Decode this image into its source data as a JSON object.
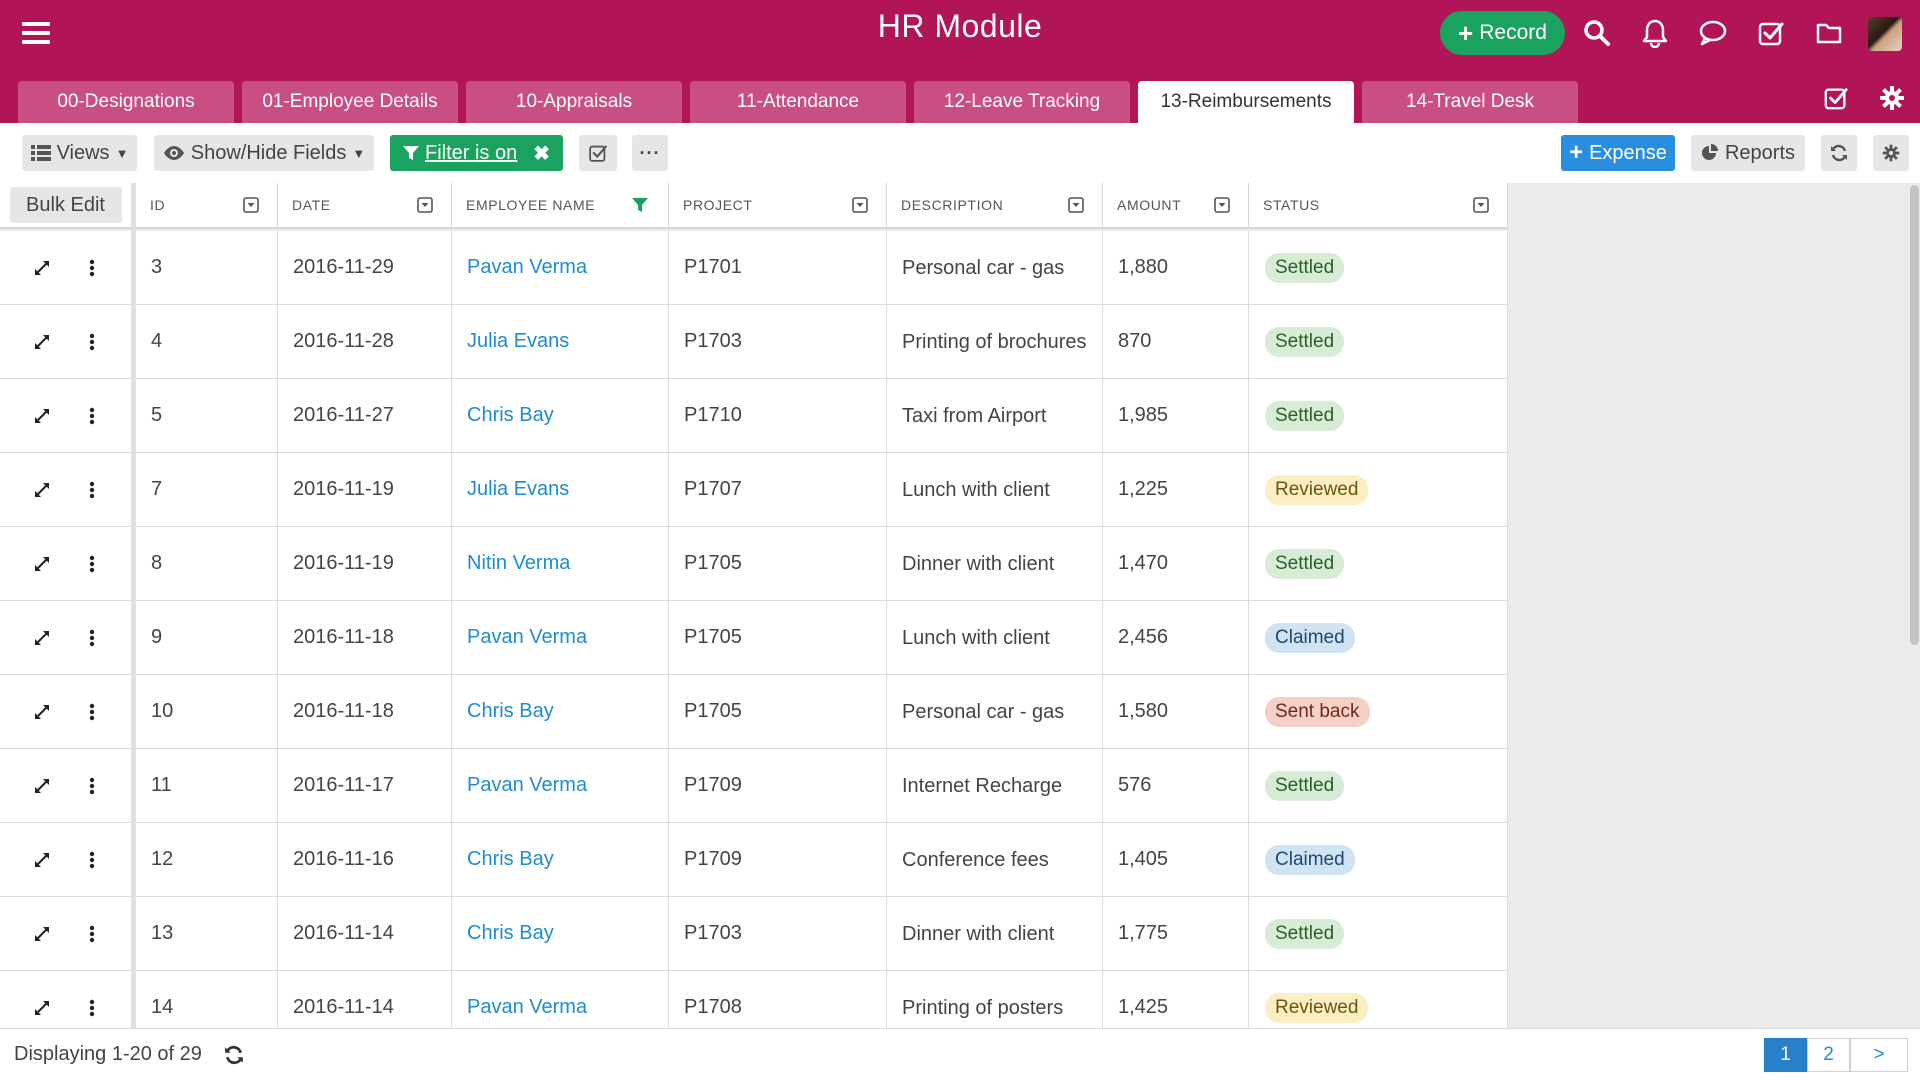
{
  "app": {
    "title": "HR Module"
  },
  "header": {
    "record_label": "Record",
    "icons": [
      "search-icon",
      "bell-icon",
      "chat-icon",
      "checkbox-icon",
      "folder-icon"
    ]
  },
  "tabs": [
    {
      "label": "00-Designations",
      "active": false
    },
    {
      "label": "01-Employee Details",
      "active": false
    },
    {
      "label": "10-Appraisals",
      "active": false
    },
    {
      "label": "11-Attendance",
      "active": false
    },
    {
      "label": "12-Leave Tracking",
      "active": false
    },
    {
      "label": "13-Reimbursements",
      "active": true
    },
    {
      "label": "14-Travel Desk",
      "active": false
    }
  ],
  "toolbar": {
    "views_label": "Views",
    "showhide_label": "Show/Hide Fields",
    "filter_label": "Filter is on",
    "expense_label": "Expense",
    "reports_label": "Reports"
  },
  "grid": {
    "bulk_edit_label": "Bulk Edit",
    "columns": [
      "ID",
      "DATE",
      "EMPLOYEE NAME",
      "PROJECT",
      "DESCRIPTION",
      "AMOUNT",
      "STATUS"
    ],
    "rows": [
      {
        "id": "3",
        "date": "2016-11-29",
        "employee": "Pavan Verma",
        "project": "P1701",
        "description": "Personal car - gas",
        "amount": "1,880",
        "status": "Settled"
      },
      {
        "id": "4",
        "date": "2016-11-28",
        "employee": "Julia Evans",
        "project": "P1703",
        "description": "Printing of brochures",
        "amount": "870",
        "status": "Settled"
      },
      {
        "id": "5",
        "date": "2016-11-27",
        "employee": "Chris Bay",
        "project": "P1710",
        "description": "Taxi from Airport",
        "amount": "1,985",
        "status": "Settled"
      },
      {
        "id": "7",
        "date": "2016-11-19",
        "employee": "Julia Evans",
        "project": "P1707",
        "description": "Lunch with client",
        "amount": "1,225",
        "status": "Reviewed"
      },
      {
        "id": "8",
        "date": "2016-11-19",
        "employee": "Nitin Verma",
        "project": "P1705",
        "description": "Dinner with client",
        "amount": "1,470",
        "status": "Settled"
      },
      {
        "id": "9",
        "date": "2016-11-18",
        "employee": "Pavan Verma",
        "project": "P1705",
        "description": "Lunch with client",
        "amount": "2,456",
        "status": "Claimed"
      },
      {
        "id": "10",
        "date": "2016-11-18",
        "employee": "Chris Bay",
        "project": "P1705",
        "description": "Personal car - gas",
        "amount": "1,580",
        "status": "Sent back"
      },
      {
        "id": "11",
        "date": "2016-11-17",
        "employee": "Pavan Verma",
        "project": "P1709",
        "description": "Internet Recharge",
        "amount": "576",
        "status": "Settled"
      },
      {
        "id": "12",
        "date": "2016-11-16",
        "employee": "Chris Bay",
        "project": "P1709",
        "description": "Conference fees",
        "amount": "1,405",
        "status": "Claimed"
      },
      {
        "id": "13",
        "date": "2016-11-14",
        "employee": "Chris Bay",
        "project": "P1703",
        "description": "Dinner with client",
        "amount": "1,775",
        "status": "Settled"
      },
      {
        "id": "14",
        "date": "2016-11-14",
        "employee": "Pavan Verma",
        "project": "P1708",
        "description": "Printing of posters",
        "amount": "1,425",
        "status": "Reviewed"
      }
    ]
  },
  "status_colors": {
    "Settled": {
      "bg": "#d6ecd4",
      "fg": "#2f5e2c"
    },
    "Reviewed": {
      "bg": "#fbeec2",
      "fg": "#6b5412"
    },
    "Claimed": {
      "bg": "#cfe3f3",
      "fg": "#23486b"
    },
    "Sent back": {
      "bg": "#f6cfc6",
      "fg": "#6e2a1c"
    }
  },
  "colors": {
    "brand": "#b11558",
    "tab_inactive": "#c94f82",
    "accent_green": "#1aa35e",
    "accent_blue": "#2a8ee0",
    "link": "#1f8bd1"
  },
  "footer": {
    "display_text": "Displaying 1-20 of 29",
    "pages": [
      "1",
      "2"
    ],
    "current_page": "1",
    "next_label": ">"
  }
}
